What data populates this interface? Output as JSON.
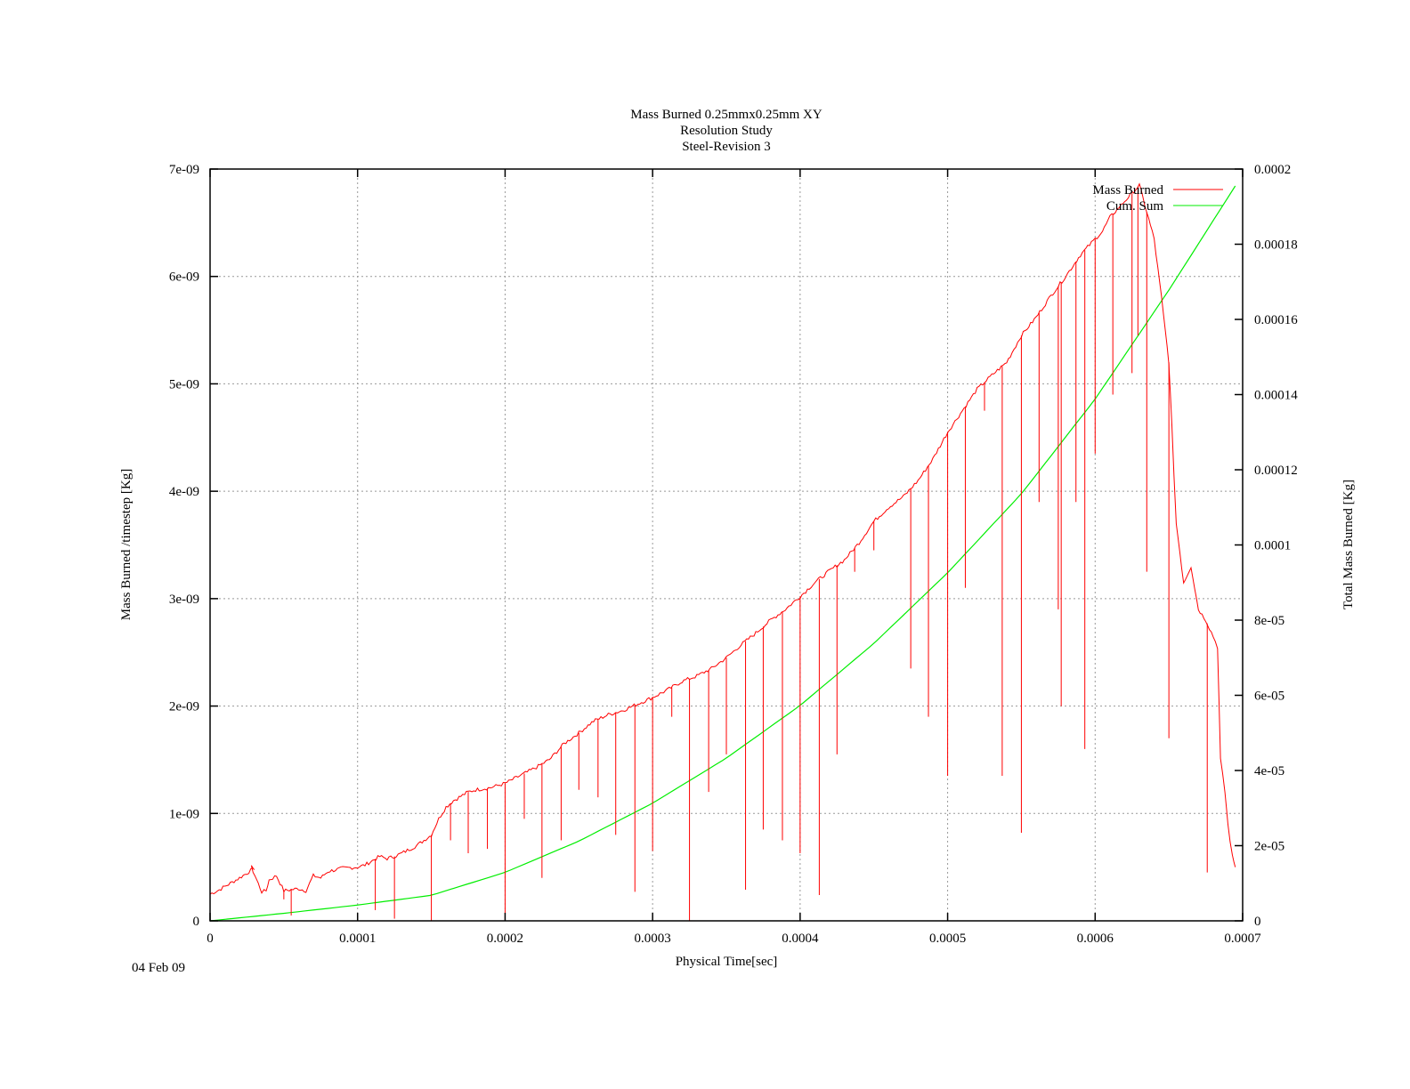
{
  "chart_data": {
    "type": "line",
    "title": [
      "Mass Burned 0.25mmx0.25mm XY",
      "Resolution Study",
      "Steel-Revision 3"
    ],
    "xlabel": "Physical Time[sec]",
    "ylabel": "Mass Burned /timestep  [Kg]",
    "y2label": "Total Mass Burned [Kg]",
    "xlim": [
      0,
      0.0007
    ],
    "ylim": [
      0,
      7e-09
    ],
    "y2lim": [
      0,
      0.0002
    ],
    "x_ticks": [
      "0",
      "0.0001",
      "0.0002",
      "0.0003",
      "0.0004",
      "0.0005",
      "0.0006",
      "0.0007"
    ],
    "y_ticks": [
      "0",
      "1e-09",
      "2e-09",
      "3e-09",
      "4e-09",
      "5e-09",
      "6e-09",
      "7e-09"
    ],
    "y2_ticks": [
      "0",
      "2e-05",
      "4e-05",
      "6e-05",
      "8e-05",
      "0.0001",
      "0.00012",
      "0.00014",
      "0.00016",
      "0.00018",
      "0.0002"
    ],
    "grid": true,
    "legend_position": "top-right",
    "colors": {
      "mass_burned": "#ff0000",
      "cum_sum": "#00ee00",
      "grid": "#999999"
    },
    "series": [
      {
        "name": "Mass Burned",
        "axis": "y",
        "x": [
          0,
          5e-06,
          1e-05,
          2e-05,
          3e-05,
          2.8e-05,
          3.5e-05,
          3.8e-05,
          4e-05,
          4.5e-05,
          5e-05,
          5.5e-05,
          6e-05,
          6.5e-05,
          7e-05,
          7.5e-05,
          8e-05,
          9e-05,
          0.0001,
          0.000105,
          0.00011,
          0.000115,
          0.00012,
          0.000125,
          0.00013,
          0.00014,
          0.00015,
          0.000155,
          0.00016,
          0.000165,
          0.00017,
          0.000175,
          0.00018,
          0.00019,
          0.0002,
          0.00021,
          0.00022,
          0.00023,
          0.00024,
          0.00025,
          0.00026,
          0.00027,
          0.00028,
          0.00029,
          0.0003,
          0.00031,
          0.00032,
          0.00033,
          0.00034,
          0.00035,
          0.00036,
          0.00037,
          0.00038,
          0.00039,
          0.0004,
          0.00041,
          0.00042,
          0.00043,
          0.00044,
          0.00045,
          0.00046,
          0.00047,
          0.00048,
          0.00049,
          0.0005,
          0.00051,
          0.00052,
          0.00053,
          0.00054,
          0.00055,
          0.00056,
          0.00057,
          0.00058,
          0.00059,
          0.0006,
          0.000605,
          0.00061,
          0.00062,
          0.00063,
          0.000635,
          0.00064,
          0.000645,
          0.00065,
          0.000652,
          0.000655,
          0.00066,
          0.000665,
          0.00067,
          0.000675,
          0.00068,
          0.000683,
          0.000685,
          0.000688,
          0.00069,
          0.000693,
          0.000695
        ],
        "y": [
          2.5e-10,
          2.8e-10,
          3.2e-10,
          4e-10,
          4.9e-10,
          5e-10,
          2.7e-10,
          2.8e-10,
          3.8e-10,
          4.2e-10,
          2.8e-10,
          2.9e-10,
          3e-10,
          2.8e-10,
          4.2e-10,
          4e-10,
          4.6e-10,
          4.9e-10,
          5e-10,
          5.2e-10,
          5.6e-10,
          6e-10,
          5.8e-10,
          6e-10,
          6.3e-10,
          7e-10,
          8e-10,
          9.5e-10,
          1.06e-09,
          1.12e-09,
          1.16e-09,
          1.2e-09,
          1.22e-09,
          1.24e-09,
          1.28e-09,
          1.35e-09,
          1.42e-09,
          1.5e-09,
          1.65e-09,
          1.75e-09,
          1.86e-09,
          1.92e-09,
          1.96e-09,
          2.02e-09,
          2.08e-09,
          2.15e-09,
          2.23e-09,
          2.28e-09,
          2.35e-09,
          2.45e-09,
          2.57e-09,
          2.68e-09,
          2.8e-09,
          2.9e-09,
          3.02e-09,
          3.15e-09,
          3.26e-09,
          3.36e-09,
          3.52e-09,
          3.72e-09,
          3.85e-09,
          3.95e-09,
          4.1e-09,
          4.3e-09,
          4.55e-09,
          4.75e-09,
          4.95e-09,
          5.08e-09,
          5.2e-09,
          5.45e-09,
          5.62e-09,
          5.82e-09,
          6e-09,
          6.2e-09,
          6.35e-09,
          6.42e-09,
          6.55e-09,
          6.7e-09,
          6.85e-09,
          6.6e-09,
          6.35e-09,
          5.8e-09,
          5.2e-09,
          4.6e-09,
          3.7e-09,
          3.15e-09,
          3.3e-09,
          2.9e-09,
          2.8e-09,
          2.65e-09,
          2.55e-09,
          1.5e-09,
          1.2e-09,
          9e-10,
          6e-10,
          5e-10
        ]
      },
      {
        "name": "Cum. Sum",
        "axis": "y2",
        "x": [
          0,
          5e-05,
          0.0001,
          0.00015,
          0.0002,
          0.00025,
          0.0003,
          0.00035,
          0.0004,
          0.00045,
          0.0005,
          0.00055,
          0.0006,
          0.00065,
          0.000695
        ],
        "y": [
          0,
          2e-06,
          4.2e-06,
          6.8e-06,
          1.29e-05,
          2.12e-05,
          3.13e-05,
          4.33e-05,
          5.73e-05,
          7.38e-05,
          9.26e-05,
          0.0001136,
          0.0001388,
          0.0001678,
          0.0001955
        ]
      }
    ],
    "dips": {
      "x": [
        5e-05,
        5.5e-05,
        0.000112,
        0.000125,
        0.00015,
        0.000163,
        0.000175,
        0.000188,
        0.0002,
        0.000213,
        0.000225,
        0.000238,
        0.00025,
        0.000263,
        0.000275,
        0.000288,
        0.0003,
        0.000313,
        0.000325,
        0.000338,
        0.00035,
        0.000363,
        0.000375,
        0.000388,
        0.0004,
        0.000413,
        0.000425,
        0.000437,
        0.00045,
        0.000475,
        0.000487,
        0.0005,
        0.000512,
        0.000525,
        0.000537,
        0.00055,
        0.000562,
        0.000575,
        0.000577,
        0.000587,
        0.000593,
        0.0006,
        0.000612,
        0.000625,
        0.000629,
        0.000635,
        0.00065,
        0.000676
      ],
      "y": [
        2e-10,
        5e-11,
        1e-10,
        2e-11,
        0,
        7.5e-10,
        6.3e-10,
        6.7e-10,
        0,
        9.5e-10,
        4e-10,
        7.5e-10,
        1.22e-09,
        1.15e-09,
        8e-10,
        2.7e-10,
        6.5e-10,
        1.9e-09,
        0,
        1.2e-09,
        1.55e-09,
        2.9e-10,
        8.5e-10,
        7.5e-10,
        6.3e-10,
        2.4e-10,
        1.55e-09,
        3.25e-09,
        3.45e-09,
        2.35e-09,
        1.9e-09,
        1.35e-09,
        3.1e-09,
        4.75e-09,
        1.35e-09,
        8.2e-10,
        3.9e-09,
        2.9e-09,
        2e-09,
        3.9e-09,
        1.6e-09,
        4.35e-09,
        4.9e-09,
        5.1e-09,
        5.45e-09,
        3.25e-09,
        1.7e-09,
        4.5e-10
      ]
    }
  },
  "footer": {
    "date": "04 Feb 09"
  }
}
